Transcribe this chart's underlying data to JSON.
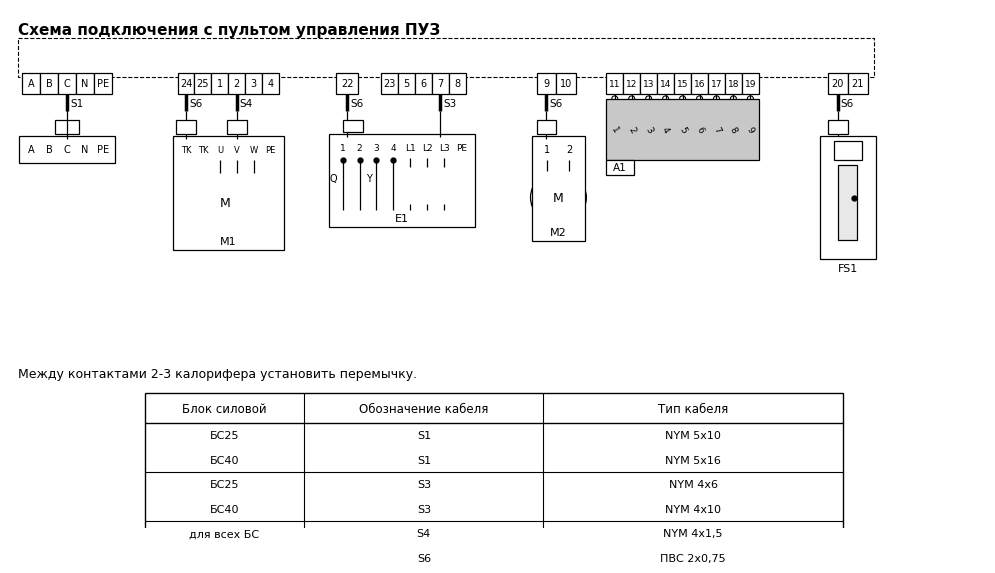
{
  "title": "Схема подключения с пультом управления ПУЗ",
  "note": "Между контактами 2-3 калорифера установить перемычку.",
  "bg_color": "#ffffff",
  "title_fontsize": 11,
  "table_headers": [
    "Блок силовой",
    "Обозначение кабеля",
    "Тип кабеля"
  ],
  "table_rows": [
    [
      "БС25",
      "S1",
      "NYM 5х10"
    ],
    [
      "БС40",
      "S1",
      "NYM 5х16"
    ],
    [
      "БС25",
      "S3",
      "NYM 4х6"
    ],
    [
      "БС40",
      "S3",
      "NYM 4х10"
    ],
    [
      "для всех БС",
      "S4",
      "NYM 4х1,5"
    ],
    [
      "",
      "S6",
      "ПВС 2х0,75"
    ]
  ],
  "table_row_separators": [
    2,
    4,
    5
  ],
  "gray_color": "#c8c8c8",
  "lw": 0.9
}
